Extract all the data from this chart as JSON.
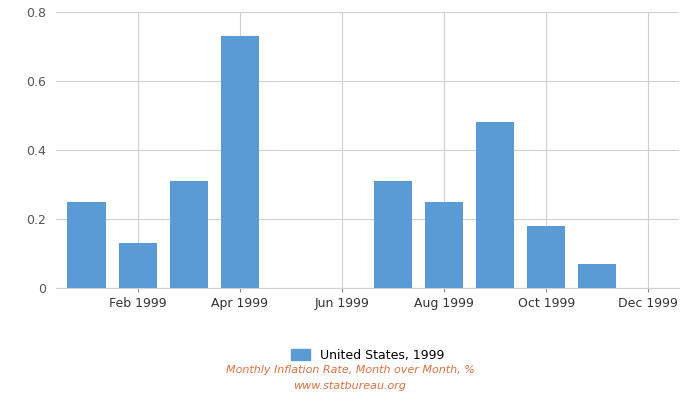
{
  "bar_months": [
    0,
    1,
    2,
    3,
    6,
    7,
    8,
    9,
    10
  ],
  "values": [
    0.25,
    0.13,
    0.31,
    0.73,
    0.31,
    0.25,
    0.48,
    0.18,
    0.07
  ],
  "bar_color": "#5b9bd5",
  "ylim": [
    0,
    0.8
  ],
  "yticks": [
    0,
    0.2,
    0.4,
    0.6,
    0.8
  ],
  "xtick_labels": [
    "Feb 1999",
    "Apr 1999",
    "Jun 1999",
    "Aug 1999",
    "Oct 1999",
    "Dec 1999"
  ],
  "xtick_positions": [
    1,
    3,
    5,
    7,
    9,
    11
  ],
  "legend_label": "United States, 1999",
  "footer_line1": "Monthly Inflation Rate, Month over Month, %",
  "footer_line2": "www.statbureau.org",
  "background_color": "#ffffff",
  "grid_color": "#d0d0d0",
  "bar_width": 0.75
}
